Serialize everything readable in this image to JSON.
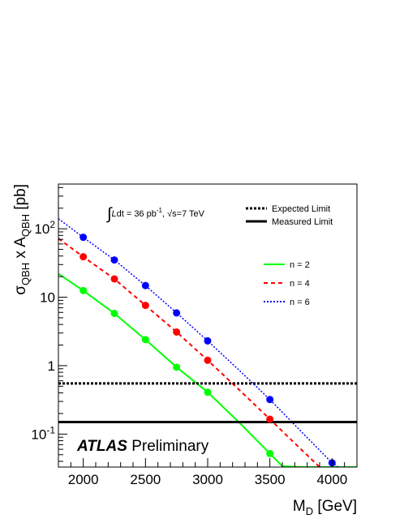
{
  "chart_data": {
    "type": "line",
    "xlabel": "M_D [GeV]",
    "ylabel": "σ_QBH x A_QBH [pb]",
    "xlim": [
      1800,
      4200
    ],
    "ylim": [
      0.033,
      450
    ],
    "yscale": "log",
    "x_ticks": [
      2000,
      2500,
      3000,
      3500,
      4000
    ],
    "y_ticks": [
      {
        "value": 0.1,
        "label": "10^-1"
      },
      {
        "value": 1,
        "label": "1"
      },
      {
        "value": 10,
        "label": "10"
      },
      {
        "value": 100,
        "label": "10^2"
      }
    ],
    "annotation": "∫Ldt = 36 pb^-1, √s=7 TeV",
    "brand": {
      "bold": "ATLAS",
      "normal": "Preliminary"
    },
    "limits": [
      {
        "name": "Expected Limit",
        "value": 0.55,
        "style": "dotted"
      },
      {
        "name": "Measured Limit",
        "value": 0.15,
        "style": "solid"
      }
    ],
    "series": [
      {
        "name": "n = 2",
        "color": "#00ff00",
        "style": "solid",
        "x": [
          2000,
          2250,
          2500,
          2750,
          3000,
          3500
        ],
        "values": [
          12.5,
          5.8,
          2.4,
          0.95,
          0.41,
          0.052
        ],
        "curve_x": [
          1800,
          2000,
          2250,
          2500,
          2750,
          3000,
          3250,
          3500,
          3600,
          3750,
          4200
        ],
        "curve_values": [
          22,
          12.5,
          5.8,
          2.4,
          0.95,
          0.41,
          0.15,
          0.052,
          0.034,
          0.033,
          0.033
        ]
      },
      {
        "name": "n = 4",
        "color": "#ff0000",
        "style": "dashed",
        "x": [
          2000,
          2250,
          2500,
          2750,
          3000,
          3500
        ],
        "values": [
          39,
          18.5,
          7.6,
          3.1,
          1.2,
          0.165
        ],
        "curve_x": [
          1800,
          2000,
          2250,
          2500,
          2750,
          3000,
          3250,
          3500,
          3750,
          3900
        ],
        "curve_values": [
          72,
          39,
          18.5,
          7.6,
          3.1,
          1.2,
          0.45,
          0.165,
          0.06,
          0.033
        ]
      },
      {
        "name": "n = 6",
        "color": "#0000ff",
        "style": "dotted",
        "x": [
          2000,
          2250,
          2500,
          2750,
          3000,
          3500,
          4000
        ],
        "values": [
          75,
          35,
          14.8,
          5.9,
          2.3,
          0.32,
          0.038
        ],
        "curve_x": [
          1800,
          2000,
          2250,
          2500,
          2750,
          3000,
          3250,
          3500,
          3750,
          4000,
          4050
        ],
        "curve_values": [
          140,
          75,
          35,
          14.8,
          5.9,
          2.3,
          0.87,
          0.32,
          0.11,
          0.038,
          0.033
        ]
      }
    ]
  }
}
